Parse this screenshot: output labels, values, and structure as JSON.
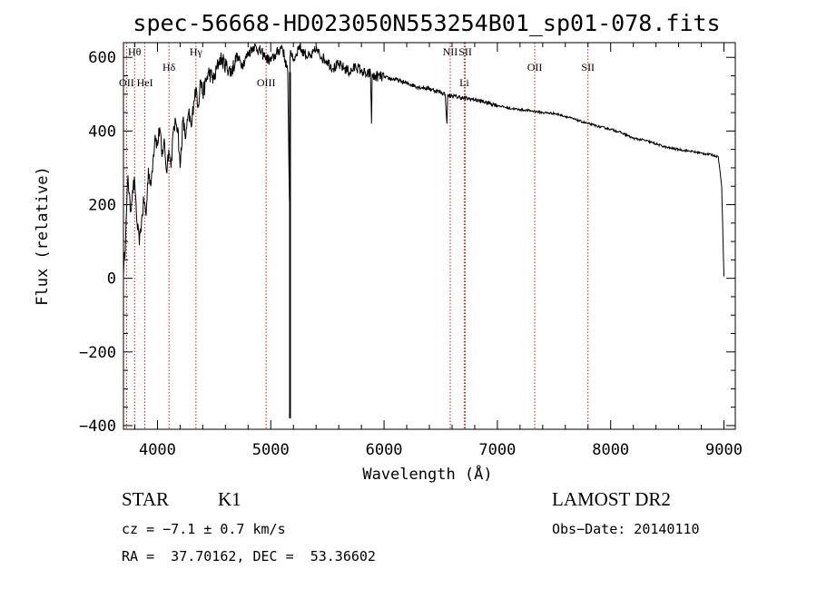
{
  "chart_data": {
    "type": "line",
    "title": "spec-56668-HD023050N553254B01_sp01-078.fits",
    "xlabel": "Wavelength (Å)",
    "ylabel": "Flux (relative)",
    "xlim": [
      3700,
      9100
    ],
    "ylim": [
      -410,
      640
    ],
    "xticks": [
      4000,
      5000,
      6000,
      7000,
      8000,
      9000
    ],
    "yticks": [
      -400,
      -200,
      0,
      200,
      400,
      600
    ],
    "series": [
      {
        "name": "spectrum",
        "x": [
          3700,
          3720,
          3740,
          3760,
          3780,
          3800,
          3820,
          3840,
          3860,
          3880,
          3900,
          3920,
          3940,
          3960,
          3980,
          4000,
          4020,
          4040,
          4060,
          4080,
          4100,
          4120,
          4140,
          4160,
          4180,
          4200,
          4225,
          4250,
          4275,
          4300,
          4320,
          4340,
          4360,
          4380,
          4400,
          4450,
          4500,
          4550,
          4600,
          4650,
          4700,
          4750,
          4800,
          4850,
          4900,
          4950,
          5000,
          5050,
          5100,
          5150,
          5165,
          5170,
          5175,
          5180,
          5185,
          5200,
          5250,
          5300,
          5350,
          5400,
          5450,
          5500,
          5550,
          5600,
          5650,
          5700,
          5750,
          5800,
          5850,
          5880,
          5890,
          5895,
          5900,
          5950,
          6000,
          6100,
          6200,
          6300,
          6400,
          6500,
          6540,
          6555,
          6562,
          6570,
          6600,
          6700,
          6800,
          6900,
          7000,
          7100,
          7200,
          7300,
          7400,
          7500,
          7600,
          7700,
          7800,
          7900,
          8000,
          8100,
          8200,
          8300,
          8400,
          8500,
          8600,
          8700,
          8800,
          8900,
          8950,
          8980,
          8990,
          9000
        ],
        "values": [
          5,
          120,
          280,
          180,
          240,
          260,
          150,
          90,
          160,
          210,
          170,
          300,
          250,
          320,
          390,
          360,
          410,
          330,
          380,
          290,
          350,
          300,
          400,
          430,
          410,
          300,
          430,
          380,
          450,
          410,
          480,
          520,
          470,
          540,
          500,
          560,
          540,
          600,
          580,
          560,
          600,
          580,
          610,
          630,
          620,
          600,
          590,
          610,
          630,
          560,
          210,
          600,
          620,
          610,
          600,
          590,
          630,
          610,
          600,
          620,
          600,
          590,
          570,
          580,
          570,
          560,
          575,
          565,
          550,
          560,
          420,
          555,
          545,
          550,
          545,
          540,
          530,
          520,
          515,
          505,
          500,
          420,
          500,
          495,
          495,
          490,
          485,
          478,
          470,
          462,
          458,
          455,
          450,
          448,
          440,
          430,
          420,
          412,
          405,
          395,
          380,
          375,
          365,
          355,
          350,
          345,
          340,
          335,
          330,
          250,
          120,
          5
        ]
      }
    ],
    "spike": {
      "x": 5170,
      "y": -380
    },
    "line_markers": [
      {
        "label": "Hθ",
        "x": 3798,
        "row": "top"
      },
      {
        "label": "OII",
        "x": 3727,
        "row": "low"
      },
      {
        "label": "HeI",
        "x": 3889,
        "row": "low"
      },
      {
        "label": "Hδ",
        "x": 4102,
        "row": "mid"
      },
      {
        "label": "Hγ",
        "x": 4340,
        "row": "top"
      },
      {
        "label": "OIII",
        "x": 4959,
        "row": "low"
      },
      {
        "label": "NII",
        "x": 6584,
        "row": "top"
      },
      {
        "label": "SII",
        "x": 6717,
        "row": "top"
      },
      {
        "label": "Li",
        "x": 6708,
        "row": "low"
      },
      {
        "label": "OII",
        "x": 7330,
        "row": "mid"
      },
      {
        "label": "SII",
        "x": 7800,
        "row": "mid"
      }
    ]
  },
  "info": {
    "object_class": "STAR",
    "subclass": "K1",
    "survey": "LAMOST DR2",
    "cz": "cz = −7.1 ± 0.7 km/s",
    "obs_date": "Obs−Date: 20140110",
    "coords": "RA =  37.70162, DEC =  53.36602"
  }
}
